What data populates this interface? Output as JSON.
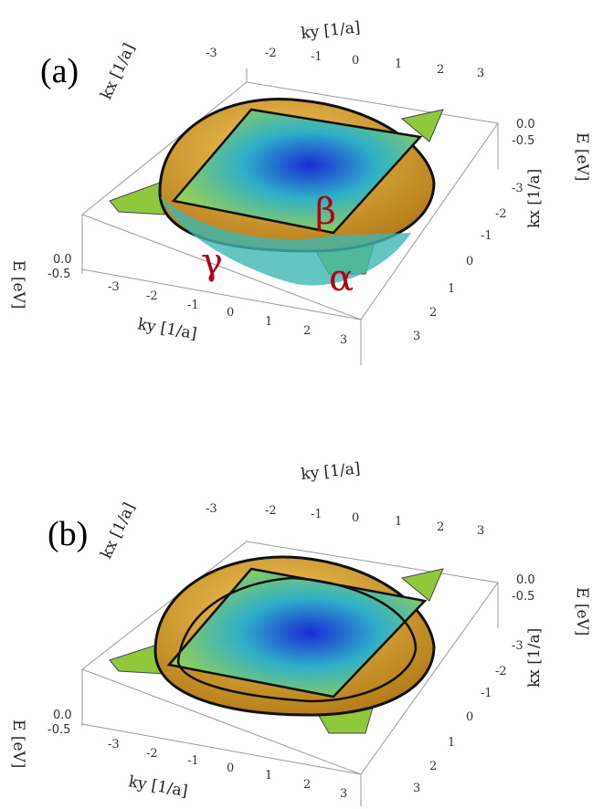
{
  "panels": [
    {
      "id": "a",
      "label": "(a)",
      "band_labels": {
        "beta": "β",
        "gamma": "γ",
        "alpha": "α"
      },
      "axes": {
        "ky_title": "ky [1/a]",
        "kx_title": "kx [1/a]",
        "e_title": "E [eV]",
        "ky_ticks": [
          "-3",
          "-2",
          "-1",
          "0",
          "1",
          "2",
          "3"
        ],
        "kx_ticks": [
          "-3",
          "-2",
          "-1",
          "0",
          "1",
          "2",
          "3"
        ],
        "e_ticks": [
          "0.0",
          "-0.5"
        ]
      }
    },
    {
      "id": "b",
      "label": "(b)",
      "band_labels": {},
      "axes": {
        "ky_title": "ky [1/a]",
        "kx_title": "kx [1/a]",
        "e_title": "E [eV]",
        "ky_ticks": [
          "-3",
          "-2",
          "-1",
          "0",
          "1",
          "2",
          "3"
        ],
        "kx_ticks": [
          "-3",
          "-2",
          "-1",
          "0",
          "1",
          "2",
          "3"
        ],
        "e_ticks": [
          "0.0",
          "-0.5"
        ]
      }
    }
  ],
  "colors": {
    "surface_deep": "#1a2bd6",
    "surface_mid": "#2fb0c8",
    "surface_edge": "#9fd24a",
    "dome": "#d9a22a",
    "contour": "#111111",
    "band_label": "#b3001b"
  }
}
